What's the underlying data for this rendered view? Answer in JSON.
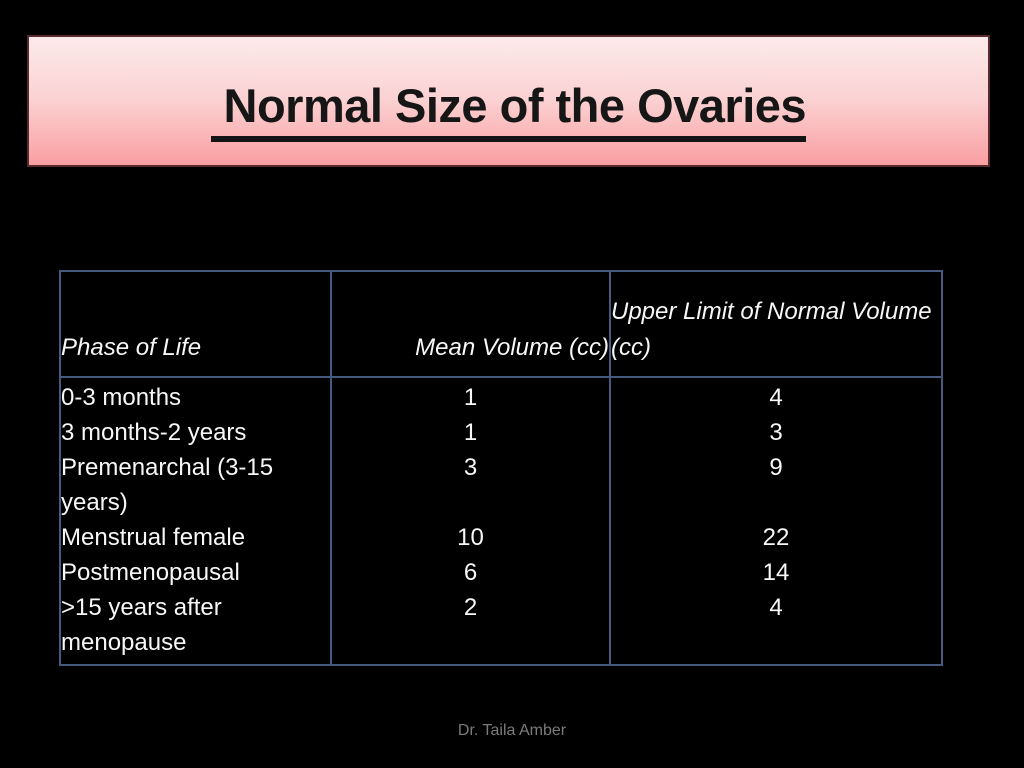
{
  "slide": {
    "title": " Normal Size of the Ovaries",
    "footer": "Dr. Taila Amber"
  },
  "colors": {
    "background": "#000000",
    "banner_gradient_top": "#fceaea",
    "banner_gradient_bottom": "#fa9fa2",
    "banner_border": "#572a2f",
    "title_text": "#161616",
    "table_border": "#46597e",
    "table_text": "#f7f7f7",
    "footer_text": "#7b7b7b"
  },
  "table": {
    "headers": [
      "Phase of Life",
      "Mean Volume (cc)",
      "Upper Limit of Normal Volume (cc)"
    ],
    "rows": [
      {
        "phase": "0-3 months",
        "mean": "1",
        "upper": "4"
      },
      {
        "phase": "3 months-2 years",
        "mean": "1",
        "upper": "3"
      },
      {
        "phase": "Premenarchal (3-15 years)",
        "mean": "3",
        "upper": "9"
      },
      {
        "phase": "Menstrual female",
        "mean": "10",
        "upper": "22"
      },
      {
        "phase": "Postmenopausal",
        "mean": "6",
        "upper": "14"
      },
      {
        "phase": ">15 years after menopause",
        "mean": "2",
        "upper": "4"
      }
    ]
  }
}
